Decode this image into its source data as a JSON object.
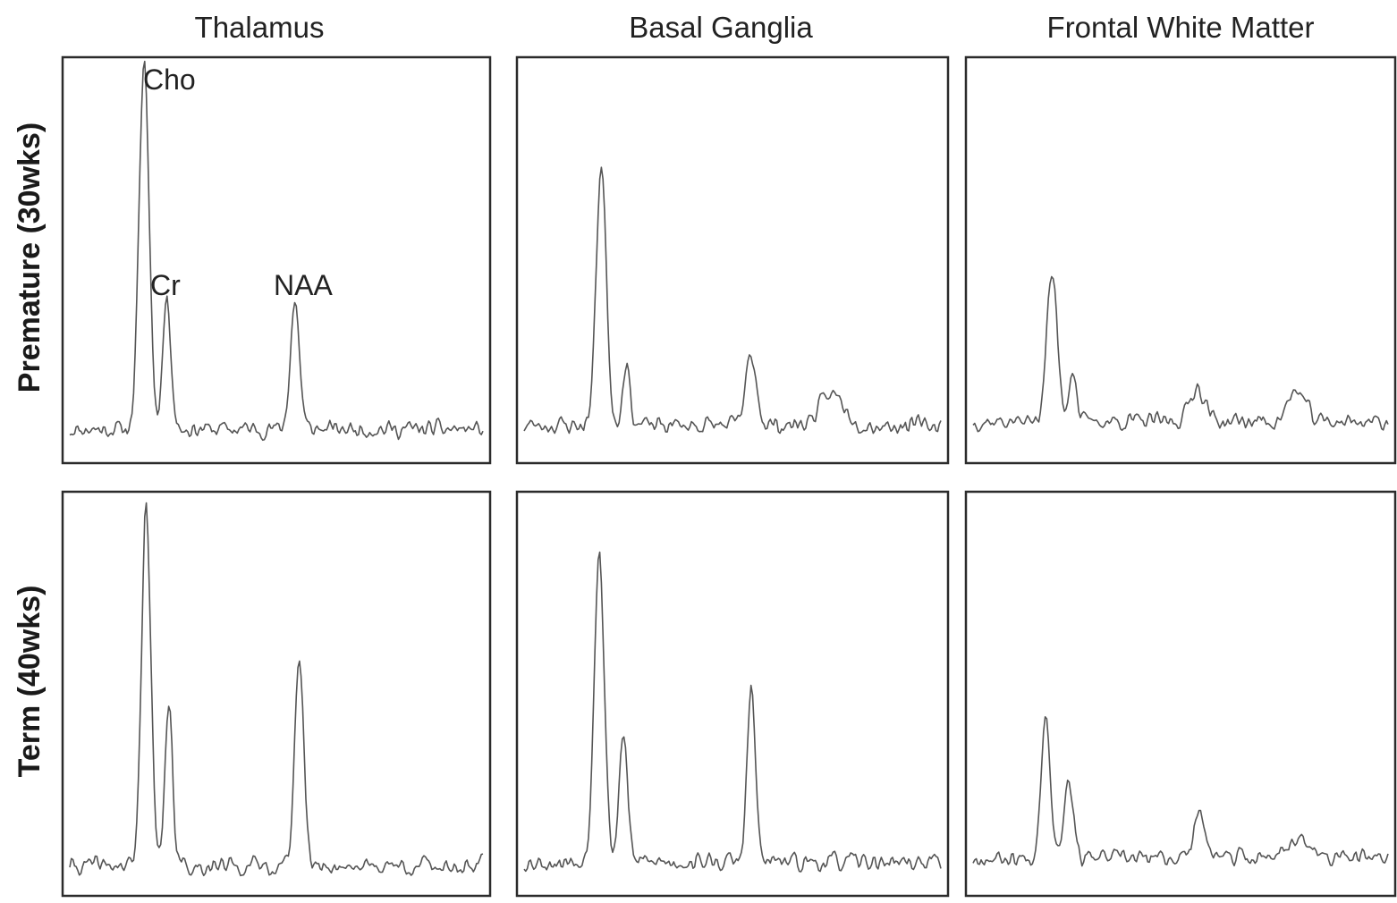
{
  "chart_data": {
    "type": "line",
    "columns": [
      "Thalamus",
      "Basal Ganglia",
      "Frontal White Matter"
    ],
    "rows": [
      "Premature (30wks)",
      "Term (40wks)"
    ],
    "peak_labels": [
      "Cho",
      "Cr",
      "NAA"
    ],
    "axes_visible": false,
    "grid": false,
    "colors": {
      "trace": "#555555",
      "frame": "#2b2b2b",
      "text": "#222222"
    },
    "panels": [
      {
        "row": "Premature (30wks)",
        "column": "Thalamus",
        "baseline": 0.07,
        "peaks": [
          {
            "name": "Cho",
            "position": 0.18,
            "height": 0.96,
            "width": 0.012
          },
          {
            "name": "Cr",
            "position": 0.235,
            "height": 0.34,
            "width": 0.01
          },
          {
            "name": "NAA",
            "position": 0.545,
            "height": 0.33,
            "width": 0.011
          }
        ],
        "noise": 0.028,
        "seed": 11
      },
      {
        "row": "Premature (30wks)",
        "column": "Basal Ganglia",
        "baseline": 0.08,
        "peaks": [
          {
            "name": "Cho",
            "position": 0.185,
            "height": 0.68,
            "width": 0.012
          },
          {
            "name": "Cr",
            "position": 0.245,
            "height": 0.16,
            "width": 0.009
          },
          {
            "name": "NAA",
            "position": 0.545,
            "height": 0.18,
            "width": 0.013
          },
          {
            "name": "",
            "position": 0.74,
            "height": 0.08,
            "width": 0.03
          }
        ],
        "noise": 0.03,
        "seed": 23
      },
      {
        "row": "Premature (30wks)",
        "column": "Frontal White Matter",
        "baseline": 0.09,
        "peaks": [
          {
            "name": "Cho",
            "position": 0.19,
            "height": 0.38,
            "width": 0.013
          },
          {
            "name": "Cr",
            "position": 0.24,
            "height": 0.14,
            "width": 0.009
          },
          {
            "name": "NAA",
            "position": 0.54,
            "height": 0.09,
            "width": 0.018
          },
          {
            "name": "",
            "position": 0.78,
            "height": 0.08,
            "width": 0.02
          }
        ],
        "noise": 0.028,
        "seed": 37
      },
      {
        "row": "Term (40wks)",
        "column": "Thalamus",
        "baseline": 0.06,
        "peaks": [
          {
            "name": "Cho",
            "position": 0.185,
            "height": 0.95,
            "width": 0.011
          },
          {
            "name": "Cr",
            "position": 0.24,
            "height": 0.42,
            "width": 0.009
          },
          {
            "name": "NAA",
            "position": 0.555,
            "height": 0.54,
            "width": 0.011
          }
        ],
        "noise": 0.03,
        "seed": 41
      },
      {
        "row": "Term (40wks)",
        "column": "Basal Ganglia",
        "baseline": 0.07,
        "peaks": [
          {
            "name": "Cho",
            "position": 0.18,
            "height": 0.82,
            "width": 0.012
          },
          {
            "name": "Cr",
            "position": 0.238,
            "height": 0.34,
            "width": 0.01
          },
          {
            "name": "NAA",
            "position": 0.545,
            "height": 0.45,
            "width": 0.01
          }
        ],
        "noise": 0.03,
        "seed": 53
      },
      {
        "row": "Term (40wks)",
        "column": "Frontal White Matter",
        "baseline": 0.08,
        "peaks": [
          {
            "name": "Cho",
            "position": 0.175,
            "height": 0.38,
            "width": 0.011
          },
          {
            "name": "Cr",
            "position": 0.23,
            "height": 0.2,
            "width": 0.012
          },
          {
            "name": "NAA",
            "position": 0.545,
            "height": 0.14,
            "width": 0.012
          },
          {
            "name": "",
            "position": 0.78,
            "height": 0.05,
            "width": 0.03
          }
        ],
        "noise": 0.028,
        "seed": 67
      }
    ]
  }
}
